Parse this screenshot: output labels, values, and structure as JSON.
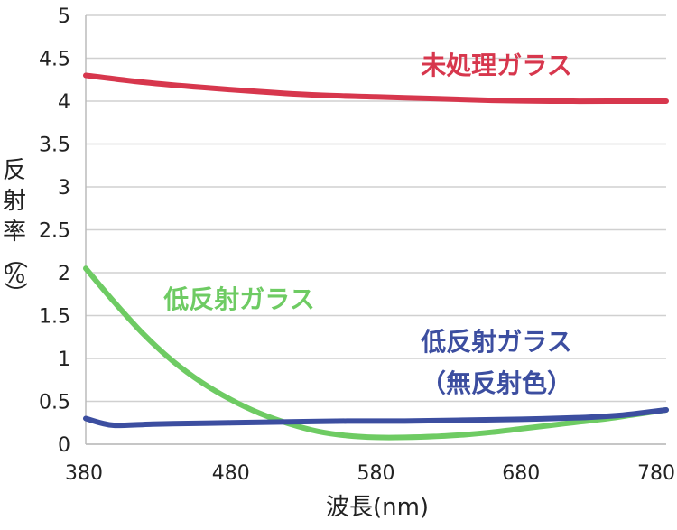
{
  "chart_data": {
    "type": "line",
    "xlabel": "波長(nm)",
    "ylabel": [
      "反",
      "射",
      "率",
      "（",
      "%",
      "）"
    ],
    "xlim": [
      380,
      780
    ],
    "ylim": [
      0,
      5
    ],
    "xticks": [
      "380",
      "480",
      "580",
      "680",
      "780"
    ],
    "yticks": [
      "0",
      "0.5",
      "1",
      "1.5",
      "2",
      "2.5",
      "3",
      "3.5",
      "4",
      "4.5",
      "5"
    ],
    "grid": true,
    "series": [
      {
        "name": "未処理ガラス",
        "color": "#d7374d",
        "x": [
          380,
          420,
          460,
          500,
          540,
          580,
          620,
          660,
          700,
          740,
          780
        ],
        "y": [
          4.3,
          4.22,
          4.16,
          4.11,
          4.07,
          4.05,
          4.03,
          4.01,
          4.0,
          4.0,
          4.0
        ]
      },
      {
        "name": "低反射ガラス",
        "color": "#6ecb63",
        "x": [
          380,
          400,
          420,
          440,
          460,
          480,
          500,
          520,
          540,
          560,
          580,
          600,
          620,
          640,
          660,
          680,
          700,
          720,
          740,
          760,
          780
        ],
        "y": [
          2.05,
          1.65,
          1.28,
          0.97,
          0.72,
          0.52,
          0.36,
          0.24,
          0.15,
          0.1,
          0.08,
          0.08,
          0.09,
          0.11,
          0.14,
          0.18,
          0.22,
          0.26,
          0.3,
          0.35,
          0.4
        ]
      },
      {
        "name": "低反射ガラス（無反射色）",
        "color": "#3c4ea0",
        "x": [
          380,
          390,
          400,
          420,
          440,
          480,
          520,
          560,
          600,
          640,
          680,
          720,
          750,
          780
        ],
        "y": [
          0.3,
          0.25,
          0.22,
          0.23,
          0.24,
          0.25,
          0.26,
          0.27,
          0.27,
          0.28,
          0.29,
          0.31,
          0.34,
          0.4
        ]
      }
    ],
    "annotations": [
      {
        "text": "未処理ガラス",
        "color": "#d7374d"
      },
      {
        "text": "低反射ガラス",
        "color": "#6ecb63"
      },
      {
        "text": "低反射ガラス",
        "color": "#3c4ea0"
      },
      {
        "text": "（無反射色）",
        "color": "#3c4ea0"
      }
    ]
  }
}
